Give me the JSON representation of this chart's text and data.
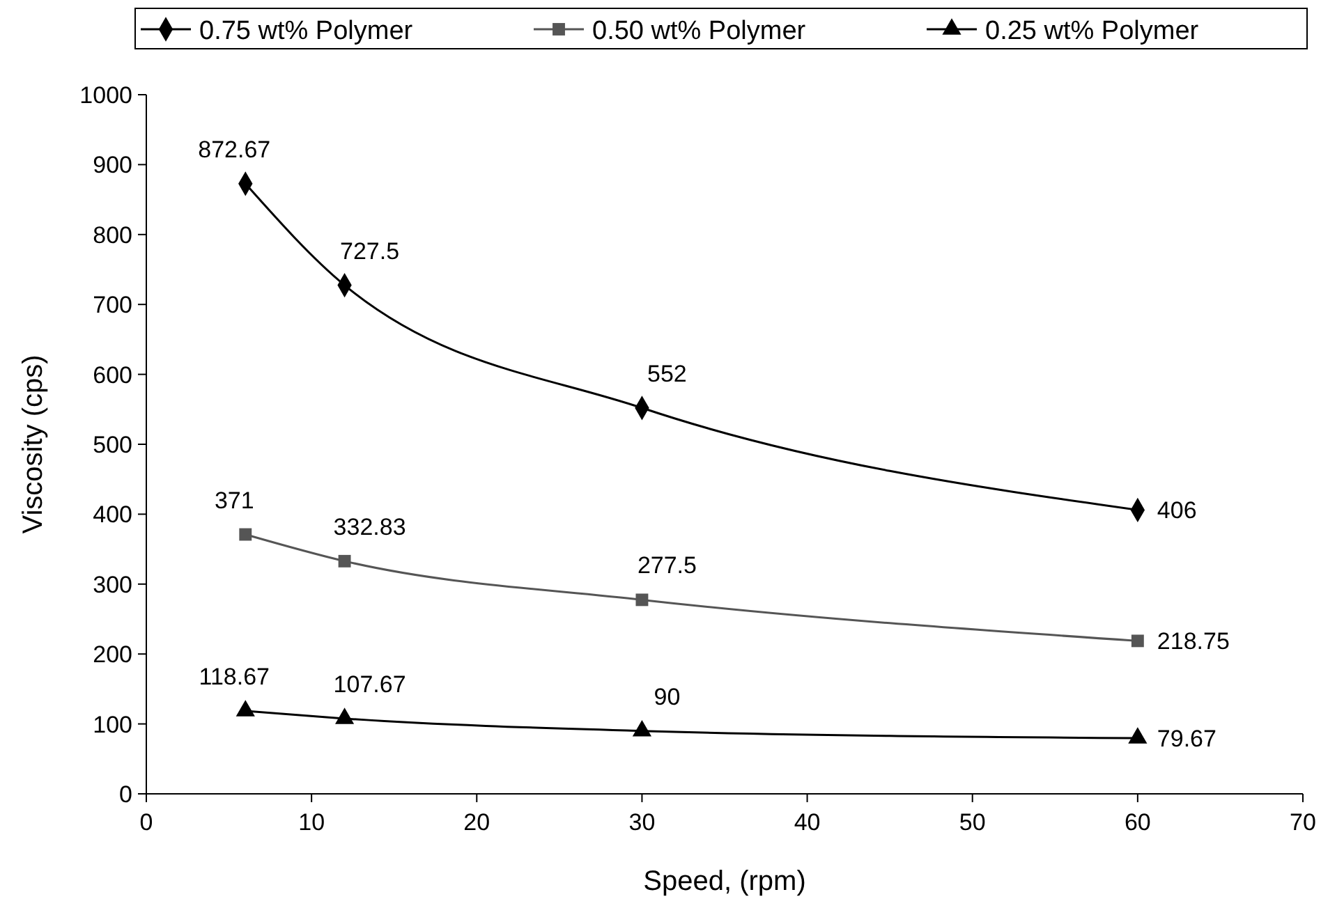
{
  "chart_data": {
    "type": "line",
    "xlabel": "Speed, (rpm)",
    "ylabel": "Viscosity (cps)",
    "x": [
      6,
      12,
      30,
      60
    ],
    "series": [
      {
        "name": "0.75 wt% Polymer",
        "color": "#000000",
        "marker": "diamond",
        "values": [
          872.67,
          727.5,
          552,
          406
        ]
      },
      {
        "name": "0.50 wt% Polymer",
        "color": "#555555",
        "marker": "square",
        "values": [
          371,
          332.83,
          277.5,
          218.75
        ]
      },
      {
        "name": "0.25 wt% Polymer",
        "color": "#000000",
        "marker": "triangle",
        "values": [
          118.67,
          107.67,
          90,
          79.67
        ]
      }
    ],
    "xlim": [
      0,
      70
    ],
    "xticks": [
      0,
      10,
      20,
      30,
      40,
      50,
      60,
      70
    ],
    "ylim": [
      0,
      1000
    ],
    "yticks": [
      0,
      100,
      200,
      300,
      400,
      500,
      600,
      700,
      800,
      900,
      1000
    ],
    "grid": false,
    "legend": "top",
    "data_labels": true,
    "line_style": "solid"
  }
}
